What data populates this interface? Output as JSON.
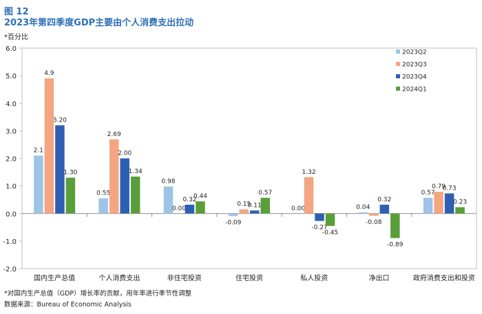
{
  "figure_label": "图 12",
  "title": "2023年第四季度GDP主要由个人消费支出拉动",
  "unit_label": "*百分比",
  "footnote": "*对国内生产总值（GDP）增长率的贡献，用年率进行季节性调整",
  "source": "数据来源：Bureau of Economic Analysis",
  "colors": {
    "2023Q2": "#9dc3e6",
    "2023Q3": "#f4a582",
    "2023Q4": "#2f5fb3",
    "2024Q1": "#5a9e3a"
  },
  "chart_data": {
    "type": "bar",
    "categories": [
      "国内生产总值",
      "个人消费支出",
      "非住宅投资",
      "住宅投资",
      "私人投资",
      "净出口",
      "政府消费支出和投资"
    ],
    "series": [
      {
        "name": "2023Q2",
        "values": [
          2.1,
          0.55,
          0.98,
          -0.09,
          0.0,
          0.04,
          0.57
        ],
        "labels": [
          "2.1",
          "0.55",
          "0.98",
          "-0.09",
          "0.00",
          "0.04",
          "0.57"
        ]
      },
      {
        "name": "2023Q3",
        "values": [
          4.9,
          2.69,
          0.0,
          0.15,
          1.32,
          -0.08,
          0.79
        ],
        "labels": [
          "4.9",
          "2.69",
          "0.00",
          "0.15",
          "1.32",
          "-0.08",
          "0.79"
        ]
      },
      {
        "name": "2023Q4",
        "values": [
          3.2,
          2.0,
          0.32,
          0.11,
          -0.27,
          0.32,
          0.73
        ],
        "labels": [
          "3.20",
          "2.00",
          "0.32",
          "0.11",
          "-0.27",
          "0.32",
          "0.73"
        ]
      },
      {
        "name": "2024Q1",
        "values": [
          1.3,
          1.34,
          0.44,
          0.57,
          -0.45,
          -0.89,
          0.23
        ],
        "labels": [
          "1.30",
          "1.34",
          "0.44",
          "0.57",
          "-0.45",
          "-0.89",
          "0.23"
        ]
      }
    ],
    "yticks": [
      "6.0",
      "5.0",
      "4.0",
      "3.0",
      "2.0",
      "1.0",
      "0.0",
      "-1.0",
      "-2.0"
    ],
    "ylim": [
      -2.0,
      6.0
    ],
    "legend_position": "top-right",
    "grid": false
  }
}
